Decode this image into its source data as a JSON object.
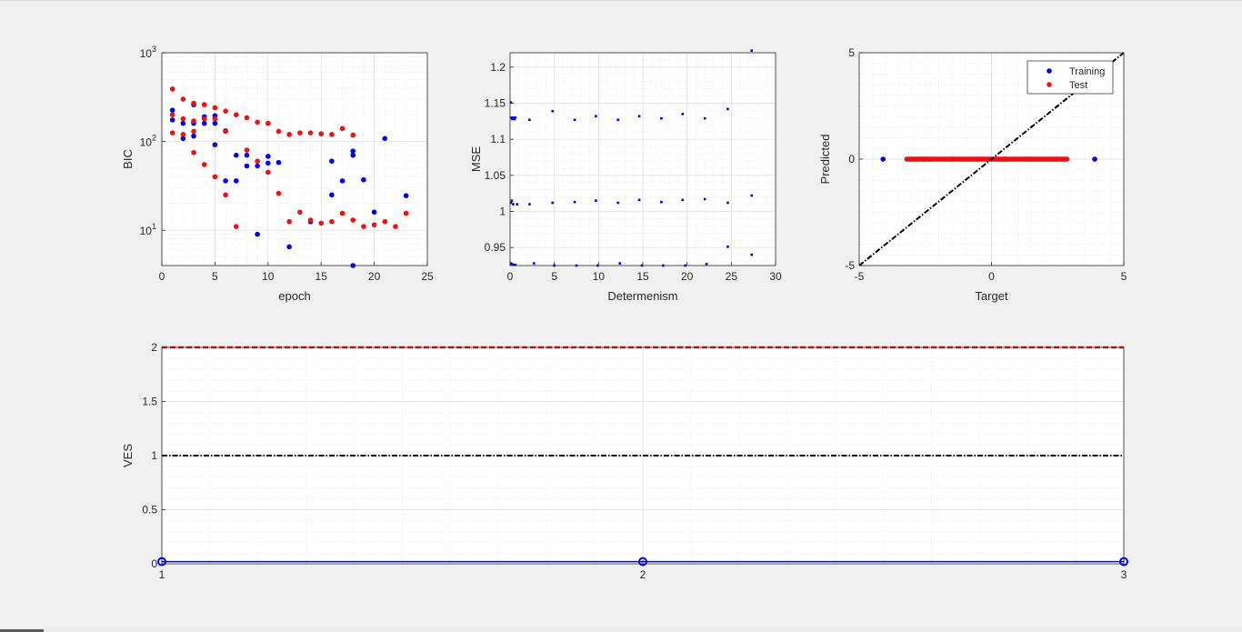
{
  "chart_data": [
    {
      "type": "scatter",
      "xlabel": "epoch",
      "ylabel": "BIC",
      "xlim": [
        0,
        25
      ],
      "ylim": [
        4,
        1000
      ],
      "yscale": "log",
      "xticks": [
        0,
        5,
        10,
        15,
        20,
        25
      ],
      "ytick_labels": [
        "10^1",
        "10^2",
        "10^3"
      ],
      "grid": true,
      "colors": [
        "#0000ee",
        "#ee1111"
      ],
      "series": [
        {
          "x": [
            1,
            1,
            2,
            2,
            3,
            3,
            3,
            4,
            4,
            5,
            5,
            5,
            6,
            6,
            7,
            7,
            8,
            8,
            9,
            9,
            10,
            10,
            11,
            12,
            14,
            16,
            16,
            17,
            18,
            18,
            18,
            19,
            20,
            21,
            23
          ],
          "y": [
            225,
            175,
            160,
            108,
            260,
            115,
            160,
            190,
            160,
            195,
            160,
            92,
            132,
            36,
            70,
            36,
            70,
            53,
            53,
            9,
            68,
            57,
            58,
            6.5,
            12.5,
            60,
            25,
            36,
            78,
            70,
            4,
            37,
            16,
            108,
            24.5
          ]
        },
        {
          "x": [
            1,
            1,
            1,
            2,
            2,
            2,
            3,
            3,
            3,
            3,
            4,
            4,
            4,
            5,
            5,
            5,
            6,
            6,
            6,
            7,
            7,
            8,
            8,
            9,
            9,
            10,
            10,
            11,
            11,
            12,
            12,
            13,
            13,
            14,
            14,
            15,
            15,
            16,
            16,
            17,
            17,
            18,
            18,
            19,
            20,
            21,
            22,
            23
          ],
          "y": [
            390,
            200,
            125,
            300,
            180,
            120,
            270,
            170,
            130,
            75,
            260,
            180,
            55,
            240,
            180,
            40,
            220,
            130,
            25,
            200,
            11,
            185,
            80,
            165,
            60,
            160,
            45,
            130,
            26,
            120,
            12.5,
            125,
            16,
            125,
            13,
            122,
            12,
            120,
            12.5,
            140,
            15.5,
            118,
            13,
            11,
            11.5,
            12.5,
            11,
            15.5
          ]
        }
      ]
    },
    {
      "type": "scatter",
      "xlabel": "Determenism",
      "ylabel": "MSE",
      "xlim": [
        0,
        30
      ],
      "ylim": [
        0.925,
        1.22
      ],
      "xticks": [
        0,
        5,
        10,
        15,
        20,
        25,
        30
      ],
      "yticks": [
        0.95,
        1,
        1.05,
        1.1,
        1.15,
        1.2
      ],
      "ytick_labels": [
        "0.95",
        "1",
        "1.05",
        "1.1",
        "1.15",
        "1.2"
      ],
      "grid": true,
      "colors": [
        "#0000ee"
      ],
      "series": [
        {
          "x": [
            0.1,
            0.15,
            0.25,
            0.35,
            0.5,
            0.6,
            2.2,
            4.8,
            7.3,
            9.7,
            12.2,
            14.6,
            17.1,
            19.5,
            22,
            24.6,
            27.3,
            0.1,
            0.2,
            0.35,
            0.8,
            2.2,
            4.8,
            7.3,
            9.7,
            12.2,
            14.6,
            17.1,
            19.5,
            22,
            24.6,
            27.3,
            0.1,
            0.2,
            0.35,
            0.6,
            2.7,
            5,
            7.5,
            9.9,
            12.4,
            14.9,
            17.3,
            19.8,
            22.2,
            24.6,
            27.3
          ],
          "y": [
            1.151,
            1.13,
            1.128,
            1.13,
            1.128,
            1.13,
            1.127,
            1.139,
            1.127,
            1.132,
            1.127,
            1.132,
            1.129,
            1.135,
            1.129,
            1.142,
            1.223,
            1.012,
            1.015,
            1.01,
            1.01,
            1.01,
            1.012,
            1.013,
            1.015,
            1.012,
            1.016,
            1.013,
            1.016,
            1.017,
            1.012,
            1.022,
            0.928,
            0.927,
            0.926,
            0.926,
            0.928,
            0.925,
            0.925,
            0.925,
            0.928,
            0.925,
            0.925,
            0.925,
            0.927,
            0.951,
            0.94
          ]
        }
      ]
    },
    {
      "type": "scatter",
      "xlabel": "Target",
      "ylabel": "Predicted",
      "xlim": [
        -5,
        5
      ],
      "ylim": [
        -5,
        5
      ],
      "xticks": [
        -5,
        0,
        5
      ],
      "yticks": [
        -5,
        0,
        5
      ],
      "ytick_labels": [
        "-5",
        "0",
        "5"
      ],
      "grid": true,
      "legend": {
        "position": "top-right",
        "entries": [
          "Training",
          "Test"
        ]
      },
      "colors": [
        "#0000ee",
        "#ee1111",
        "#000000"
      ],
      "series": [
        {
          "name": "Training",
          "x": [
            -4.1,
            -2.8,
            -2.6,
            -2.3,
            -1.5,
            -0.5,
            0.5,
            1.5,
            2.4,
            3.9
          ],
          "y": [
            0,
            0,
            0,
            0,
            0,
            0,
            0,
            0,
            0,
            0
          ]
        },
        {
          "name": "Test",
          "x_range": [
            -3.2,
            2.85
          ],
          "y": 0
        },
        {
          "x": [
            -5,
            5
          ],
          "y": [
            -5,
            5
          ]
        }
      ]
    },
    {
      "type": "line",
      "xlabel": "",
      "ylabel": "VES",
      "xlim": [
        1,
        3
      ],
      "ylim": [
        0,
        2
      ],
      "xticks": [
        1,
        2,
        3
      ],
      "yticks": [
        0,
        0.5,
        1,
        1.5,
        2
      ],
      "ytick_labels": [
        "0",
        "0.5",
        "1",
        "1.5",
        "2"
      ],
      "grid": true,
      "colors": [
        "#ee1111",
        "#000000",
        "#0000ee"
      ],
      "series": [
        {
          "x": [
            1,
            3
          ],
          "y": [
            2,
            2
          ]
        },
        {
          "x": [
            1,
            3
          ],
          "y": [
            1,
            1
          ]
        },
        {
          "x": [
            1,
            2,
            3
          ],
          "y": [
            0.02,
            0.02,
            0.02
          ]
        }
      ]
    }
  ]
}
